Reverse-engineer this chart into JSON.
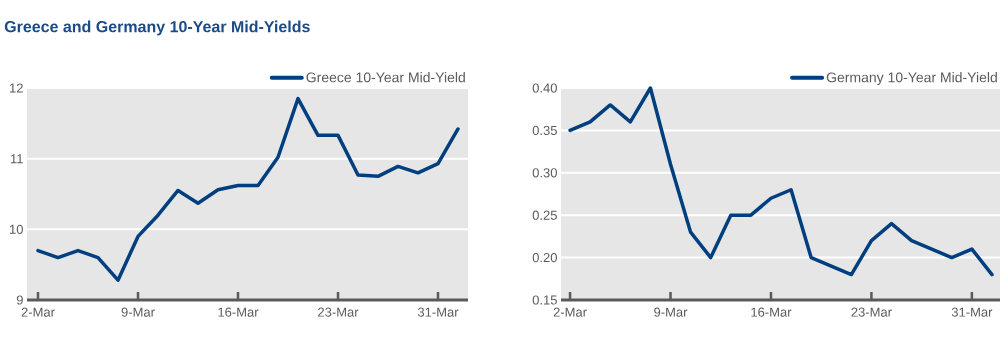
{
  "chart_data": [
    {
      "type": "line",
      "title": "Greece and Germany 10-Year Mid-Yields",
      "categories": [
        "2-Mar",
        null,
        null,
        null,
        null,
        "9-Mar",
        null,
        null,
        null,
        null,
        "16-Mar",
        null,
        null,
        null,
        null,
        "23-Mar",
        null,
        null,
        null,
        null,
        "31-Mar",
        null
      ],
      "series": [
        {
          "name": "Greece 10-Year Mid-Yield",
          "color": "#003f7f",
          "values": [
            9.7,
            9.6,
            9.7,
            9.6,
            9.28,
            9.9,
            10.2,
            10.55,
            10.37,
            10.56,
            10.62,
            10.62,
            11.02,
            11.85,
            11.33,
            11.33,
            10.77,
            10.75,
            10.89,
            10.8,
            10.93,
            11.42
          ]
        }
      ],
      "ylim": [
        9,
        12
      ],
      "yticks": [
        9,
        10,
        11,
        12
      ],
      "grid": "y",
      "legend": "top right",
      "marker": "none",
      "line_style": "solid"
    },
    {
      "type": "line",
      "categories": [
        "2-Mar",
        null,
        null,
        null,
        null,
        "9-Mar",
        null,
        null,
        null,
        null,
        "16-Mar",
        null,
        null,
        null,
        null,
        "23-Mar",
        null,
        null,
        null,
        null,
        "31-Mar",
        null
      ],
      "series": [
        {
          "name": "Germany 10-Year Mid-Yield",
          "color": "#003f7f",
          "values": [
            0.35,
            0.36,
            0.38,
            0.36,
            0.4,
            0.31,
            0.23,
            0.2,
            0.25,
            0.25,
            0.27,
            0.28,
            0.2,
            0.19,
            0.18,
            0.22,
            0.24,
            0.22,
            0.21,
            0.2,
            0.21,
            0.18
          ]
        }
      ],
      "ylim": [
        0.15,
        0.4
      ],
      "yticks": [
        {
          "value": 0.15,
          "label": "0.15"
        },
        {
          "value": 0.2,
          "label": "0.20"
        },
        {
          "value": 0.25,
          "label": "0.25"
        },
        {
          "value": 0.3,
          "label": "0.30"
        },
        {
          "value": 0.35,
          "label": "0.35"
        },
        {
          "value": 0.4,
          "label": "0.40"
        }
      ],
      "grid": "y",
      "legend": "top right",
      "marker": "none",
      "line_style": "solid"
    }
  ]
}
